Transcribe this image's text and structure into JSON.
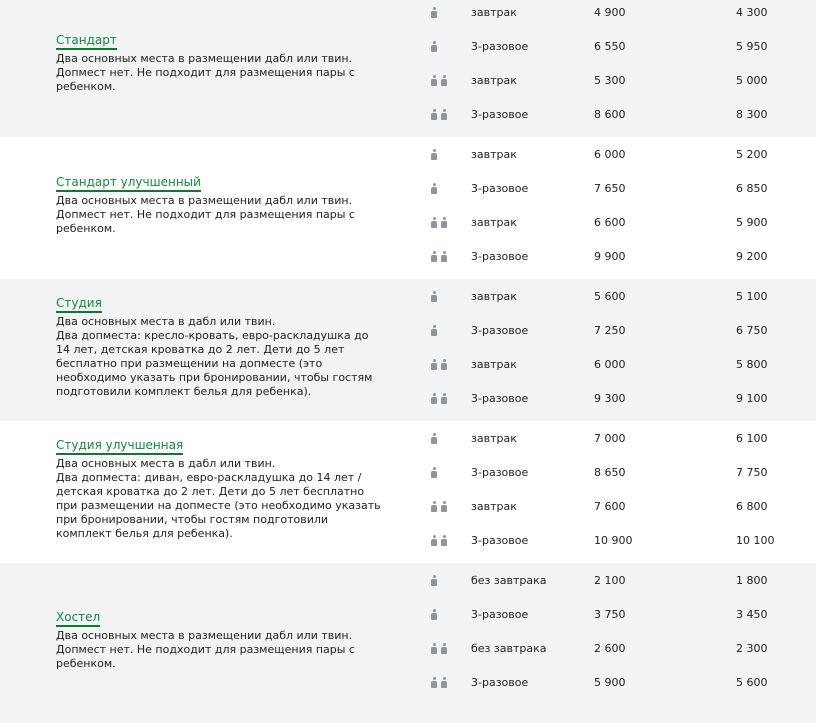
{
  "groups": [
    {
      "title": "Стандарт",
      "description": "Два основных места в размещении дабл или твин.\nДопмест нет. Не подходит для размещения пары с\nребенком.",
      "rows": [
        {
          "guests": 1,
          "meal": "завтрак",
          "price1": "4 900",
          "price2": "4 300"
        },
        {
          "guests": 1,
          "meal": "3-разовое",
          "price1": "6 550",
          "price2": "5 950"
        },
        {
          "guests": 2,
          "meal": "завтрак",
          "price1": "5 300",
          "price2": "5 000"
        },
        {
          "guests": 2,
          "meal": "3-разовое",
          "price1": "8 600",
          "price2": "8 300"
        }
      ]
    },
    {
      "title": "Стандарт улучшенный",
      "description": "Два основных места в размещении дабл или твин.\nДопмест нет. Не подходит для размещения пары с\nребенком.",
      "rows": [
        {
          "guests": 1,
          "meal": "завтрак",
          "price1": "6 000",
          "price2": "5 200"
        },
        {
          "guests": 1,
          "meal": "3-разовое",
          "price1": "7 650",
          "price2": "6 850"
        },
        {
          "guests": 2,
          "meal": "завтрак",
          "price1": "6 600",
          "price2": "5 900"
        },
        {
          "guests": 2,
          "meal": "3-разовое",
          "price1": "9 900",
          "price2": "9 200"
        }
      ]
    },
    {
      "title": "Студия",
      "description": "Два основных места в дабл или твин.\nДва допместа: кресло-кровать, евро-раскладушка до\n14 лет, детская кроватка до 2 лет. Дети до 5 лет\nбесплатно при размещении на допместе (это\nнеобходимо указать при бронировании, чтобы гостям\nподготовили комплект белья для ребенка).",
      "rows": [
        {
          "guests": 1,
          "meal": "завтрак",
          "price1": "5 600",
          "price2": "5 100"
        },
        {
          "guests": 1,
          "meal": "3-разовое",
          "price1": "7 250",
          "price2": "6 750"
        },
        {
          "guests": 2,
          "meal": "завтрак",
          "price1": "6 000",
          "price2": "5 800"
        },
        {
          "guests": 2,
          "meal": "3-разовое",
          "price1": "9 300",
          "price2": "9 100"
        }
      ]
    },
    {
      "title": "Студия улучшенная",
      "description": "Два основных места в дабл или твин.\nДва допместа: диван, евро-раскладушка до 14 лет /\nдетская кроватка до 2 лет. Дети до 5 лет бесплатно\nпри размещении на допместе (это необходимо указать\nпри бронировании, чтобы гостям подготовили\nкомплект белья для ребенка).",
      "rows": [
        {
          "guests": 1,
          "meal": "завтрак",
          "price1": "7 000",
          "price2": "6 100"
        },
        {
          "guests": 1,
          "meal": "3-разовое",
          "price1": "8 650",
          "price2": "7 750"
        },
        {
          "guests": 2,
          "meal": "завтрак",
          "price1": "7 600",
          "price2": "6 800"
        },
        {
          "guests": 2,
          "meal": "3-разовое",
          "price1": "10 900",
          "price2": "10 100"
        }
      ]
    },
    {
      "title": "Хостел",
      "description": "Два основных места в размещении дабл или твин.\nДопмест нет. Не подходит для размещения пары с\nребенком.",
      "rows": [
        {
          "guests": 1,
          "meal": "без завтрака",
          "price1": "2 100",
          "price2": "1 800"
        },
        {
          "guests": 1,
          "meal": "3-разовое",
          "price1": "3 750",
          "price2": "3 450"
        },
        {
          "guests": 2,
          "meal": "без завтрака",
          "price1": "2 600",
          "price2": "2 300"
        },
        {
          "guests": 2,
          "meal": "3-разовое",
          "price1": "5 900",
          "price2": "5 600"
        }
      ]
    }
  ],
  "colors": {
    "accent": "#138a3a",
    "row_alt_bg": "#f2f3f5",
    "icon": "#8e959c"
  },
  "icons": {
    "guest": "person-icon"
  }
}
